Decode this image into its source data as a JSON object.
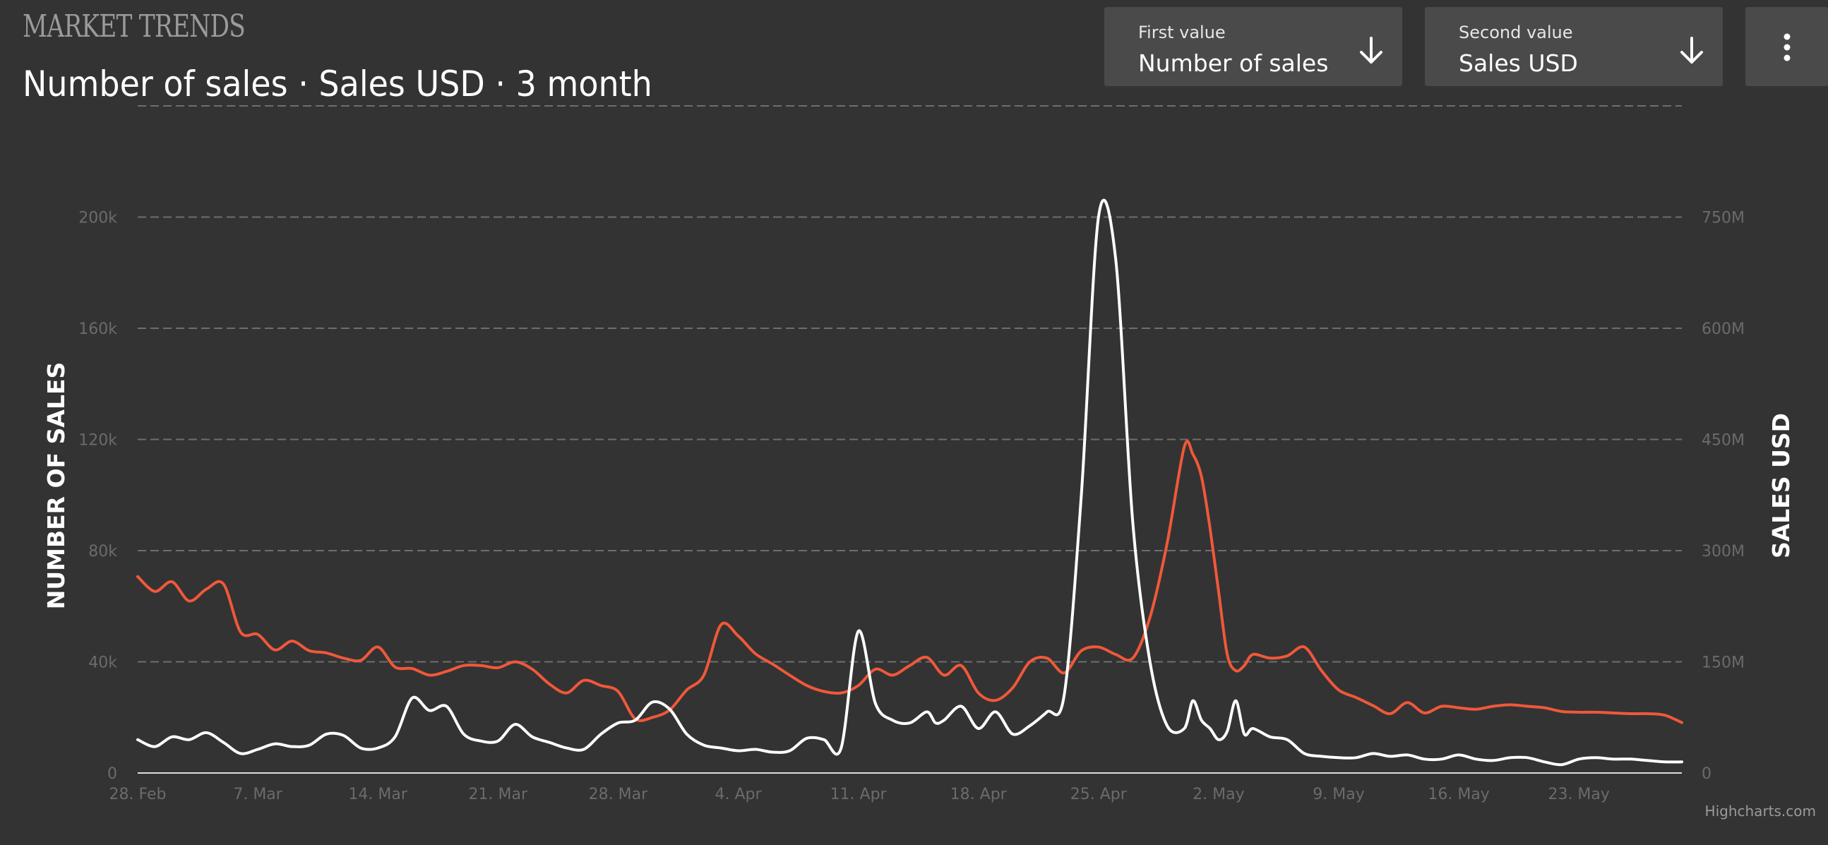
{
  "header": {
    "brand": "MARKET TRENDS",
    "title": "Number of sales · Sales USD · 3 month"
  },
  "controls": {
    "first": {
      "label": "First value",
      "value": "Number of sales",
      "icon": "arrow-down-icon"
    },
    "second": {
      "label": "Second value",
      "value": "Sales USD",
      "icon": "arrow-down-icon"
    },
    "more_icon": "vertical-dots-icon"
  },
  "credits": "Highcharts.com",
  "chart_data": {
    "type": "line",
    "title": "Number of sales · Sales USD · 3 month",
    "x_start_day": 0,
    "x_end_day": 90,
    "x_tick_labels": [
      "28. Feb",
      "7. Mar",
      "14. Mar",
      "21. Mar",
      "28. Mar",
      "4. Apr",
      "11. Apr",
      "18. Apr",
      "25. Apr",
      "2. May",
      "9. May",
      "16. May",
      "23. May"
    ],
    "x_tick_days": [
      0,
      7,
      14,
      21,
      28,
      35,
      42,
      49,
      56,
      63,
      70,
      77,
      84
    ],
    "y_left": {
      "title": "NUMBER OF SALES",
      "min": 0,
      "max": 240000,
      "ticks": [
        0,
        40000,
        80000,
        120000,
        160000,
        200000
      ],
      "tick_labels": [
        "0",
        "40k",
        "80k",
        "120k",
        "160k",
        "200k"
      ]
    },
    "y_right": {
      "title": "SALES USD",
      "min": 0,
      "max": 900000000,
      "ticks": [
        0,
        150000000,
        300000000,
        450000000,
        600000000,
        750000000
      ],
      "tick_labels": [
        "0",
        "150M",
        "300M",
        "450M",
        "600M",
        "750M"
      ]
    },
    "grid": true,
    "series": [
      {
        "name": "Number of sales",
        "axis": "left",
        "color": "#ffffff",
        "x": [
          0,
          1,
          2,
          3,
          4,
          5,
          6,
          7,
          8,
          9,
          10,
          11,
          12,
          13,
          14,
          15,
          16,
          17,
          18,
          19,
          20,
          21,
          22,
          23,
          24,
          25,
          26,
          27,
          28,
          29,
          30,
          31,
          32,
          33,
          34,
          35,
          36,
          37,
          38,
          39,
          40,
          41,
          42,
          43,
          44,
          45,
          46,
          46.5,
          47,
          48,
          49,
          50,
          51,
          52,
          53,
          54,
          55,
          56,
          57,
          58,
          59,
          60,
          61,
          61.5,
          62,
          62.5,
          63,
          63.5,
          64,
          64.5,
          65,
          66,
          67,
          68,
          69,
          70,
          71,
          72,
          73,
          74,
          75,
          76,
          77,
          78,
          79,
          80,
          81,
          82,
          83,
          84,
          85,
          86,
          87,
          88,
          89,
          90
        ],
        "values": [
          12000,
          9500,
          13000,
          12000,
          14500,
          11000,
          7000,
          8500,
          10500,
          9500,
          10000,
          14000,
          13500,
          9000,
          9000,
          13000,
          27000,
          22500,
          24000,
          14000,
          11500,
          11500,
          17500,
          13000,
          11000,
          9000,
          8500,
          14000,
          18000,
          19000,
          25500,
          23000,
          14000,
          10000,
          9000,
          8000,
          8500,
          7500,
          8000,
          12500,
          12000,
          9000,
          51000,
          25000,
          19000,
          18000,
          22000,
          18000,
          19000,
          24000,
          16000,
          22000,
          14000,
          17000,
          22000,
          28000,
          100000,
          200000,
          185000,
          90000,
          40000,
          17000,
          16000,
          26000,
          19000,
          16000,
          12000,
          15000,
          26000,
          14000,
          16000,
          13000,
          12000,
          7000,
          6000,
          5500,
          5500,
          7000,
          6000,
          6500,
          5000,
          5000,
          6500,
          5000,
          4500,
          5500,
          5500,
          4000,
          3000,
          5000,
          5500,
          5000,
          5000,
          4500,
          4000,
          4000
        ]
      },
      {
        "name": "Sales USD",
        "axis": "right",
        "color": "#f0583a",
        "x": [
          0,
          1,
          2,
          3,
          4,
          5,
          6,
          7,
          8,
          9,
          10,
          11,
          12,
          13,
          14,
          15,
          16,
          17,
          18,
          19,
          20,
          21,
          22,
          23,
          24,
          25,
          26,
          27,
          28,
          29,
          30,
          31,
          32,
          33,
          34,
          35,
          36,
          37,
          38,
          39,
          40,
          41,
          42,
          43,
          44,
          45,
          46,
          47,
          48,
          49,
          50,
          51,
          52,
          53,
          54,
          55,
          56,
          57,
          58,
          59,
          60,
          61,
          61.5,
          62,
          62.5,
          63,
          63.5,
          64,
          64.5,
          65,
          66,
          67,
          68,
          69,
          70,
          71,
          72,
          73,
          74,
          75,
          76,
          77,
          78,
          79,
          80,
          81,
          82,
          83,
          84,
          85,
          86,
          87,
          88,
          89,
          90
        ],
        "values": [
          265000000,
          245000000,
          258000000,
          232000000,
          248000000,
          255000000,
          190000000,
          187000000,
          166000000,
          178000000,
          165000000,
          162000000,
          155000000,
          152000000,
          170000000,
          143000000,
          141000000,
          132000000,
          137000000,
          145000000,
          145000000,
          142000000,
          150000000,
          140000000,
          120000000,
          108000000,
          125000000,
          118000000,
          110000000,
          73000000,
          75000000,
          85000000,
          112000000,
          132000000,
          200000000,
          185000000,
          161000000,
          147000000,
          132000000,
          118000000,
          110000000,
          108000000,
          118000000,
          140000000,
          132000000,
          145000000,
          156000000,
          132000000,
          145000000,
          108000000,
          98000000,
          115000000,
          150000000,
          155000000,
          135000000,
          165000000,
          170000000,
          160000000,
          155000000,
          210000000,
          310000000,
          440000000,
          430000000,
          400000000,
          330000000,
          245000000,
          160000000,
          138000000,
          145000000,
          160000000,
          155000000,
          158000000,
          170000000,
          138000000,
          112000000,
          102000000,
          91000000,
          80000000,
          95000000,
          81000000,
          90000000,
          88000000,
          86000000,
          90000000,
          92000000,
          90000000,
          88000000,
          83000000,
          82000000,
          82000000,
          81000000,
          80000000,
          80000000,
          78000000,
          68000000
        ]
      }
    ]
  }
}
